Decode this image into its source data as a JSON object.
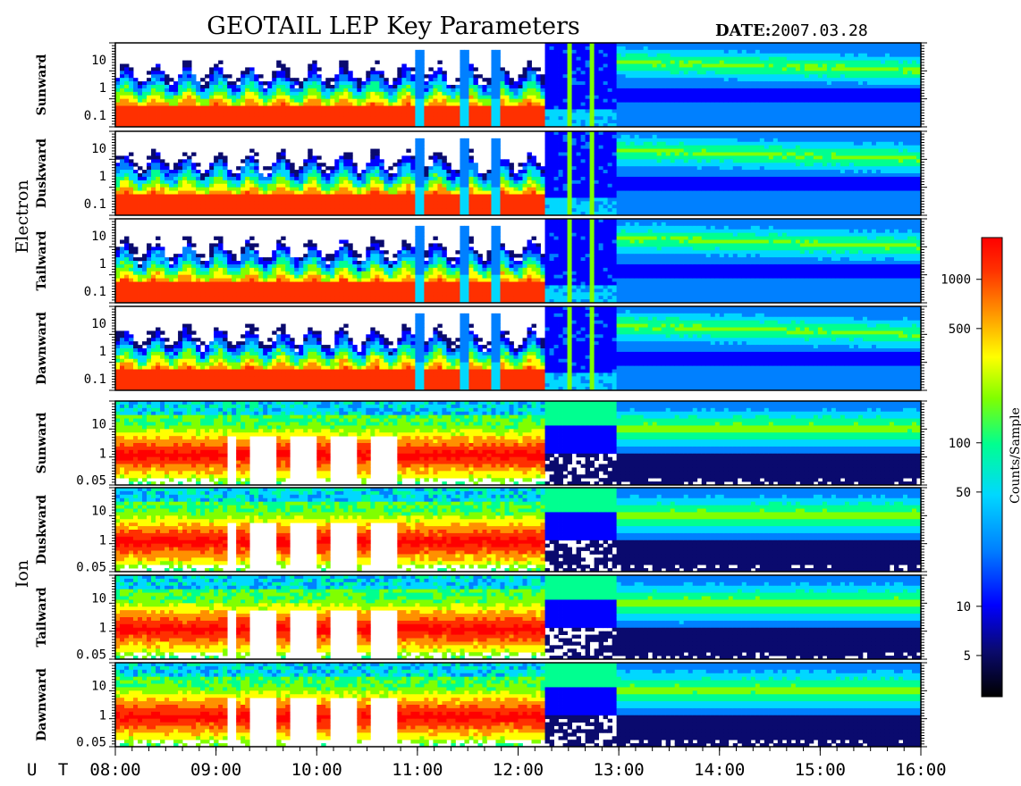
{
  "title": "GEOTAIL LEP Key Parameters",
  "date_label": "DATE:",
  "date_value": "2007.03.28",
  "chart_data": {
    "type": "heatmap",
    "xlabel": "U T",
    "x_ticks": [
      "08:00",
      "09:00",
      "10:00",
      "11:00",
      "12:00",
      "13:00",
      "14:00",
      "15:00",
      "16:00"
    ],
    "groups": [
      {
        "name": "Electron",
        "panels": [
          {
            "name": "Sunward",
            "y_ticks": [
              "10",
              "1",
              "0.1"
            ]
          },
          {
            "name": "Duskward",
            "y_ticks": [
              "10",
              "1",
              "0.1"
            ]
          },
          {
            "name": "Tailward",
            "y_ticks": [
              "10",
              "1",
              "0.1"
            ]
          },
          {
            "name": "Dawnward",
            "y_ticks": [
              "10",
              "1",
              "0.1"
            ]
          }
        ]
      },
      {
        "name": "Ion",
        "panels": [
          {
            "name": "Sunward",
            "y_ticks": [
              "10",
              "1",
              "0.05"
            ]
          },
          {
            "name": "Duskward",
            "y_ticks": [
              "10",
              "1",
              "0.05"
            ]
          },
          {
            "name": "Tailward",
            "y_ticks": [
              "10",
              "1",
              "0.05"
            ]
          },
          {
            "name": "Dawnward",
            "y_ticks": [
              "10",
              "1",
              "0.05"
            ]
          }
        ]
      }
    ],
    "colorbar": {
      "label": "Counts/Sample",
      "ticks": [
        "1000",
        "500",
        "100",
        "50",
        "10",
        "5"
      ],
      "tick_values": [
        1000,
        500,
        100,
        50,
        10,
        5
      ],
      "range": [
        2.8,
        1800
      ],
      "scale": "log"
    },
    "colormap": [
      "#000000",
      "#0a0a6e",
      "#0000ff",
      "#0080ff",
      "#00d8ff",
      "#00ff90",
      "#80ff00",
      "#ffff00",
      "#ff9000",
      "#ff3000",
      "#ff0000"
    ]
  }
}
